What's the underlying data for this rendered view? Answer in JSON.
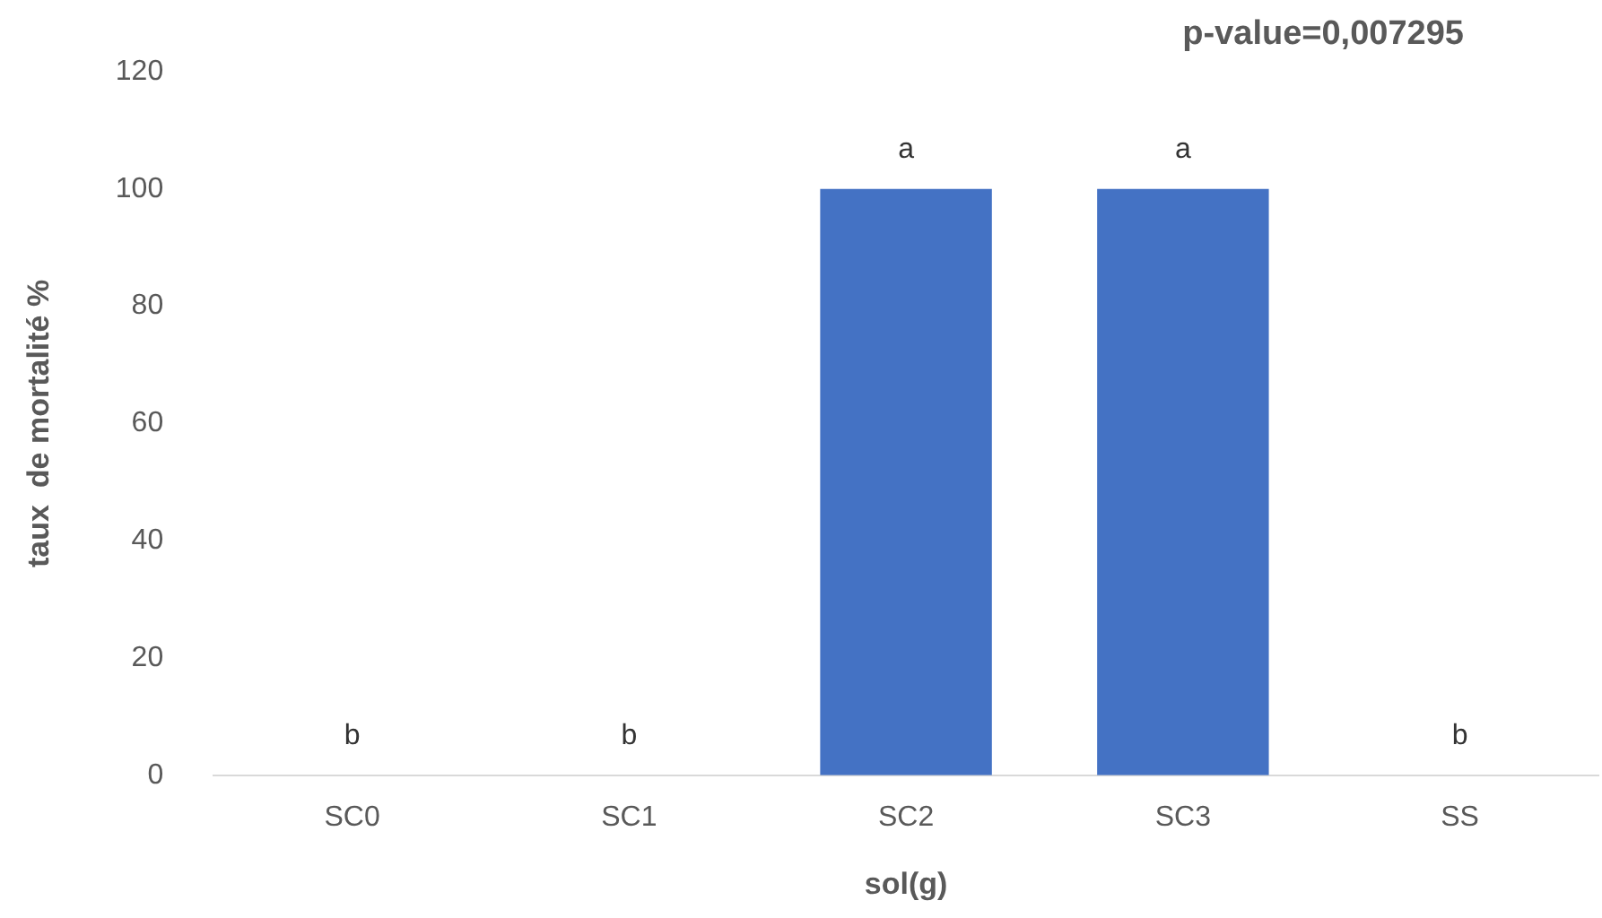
{
  "chart_data": {
    "type": "bar",
    "xlabel": "sol(g)",
    "ylabel": "taux  de mortalité %",
    "categories": [
      "SC0",
      "SC1",
      "SC2",
      "SC3",
      "SS"
    ],
    "values": [
      0,
      0,
      100,
      100,
      0
    ],
    "color": "#4472c4",
    "ylim": [
      0,
      120
    ],
    "yticks": [
      0,
      20,
      40,
      60,
      80,
      100,
      120
    ],
    "grid": false,
    "legend": false,
    "annotations": [
      "p-value=0,007295",
      {
        "text": "b",
        "x": "SC0",
        "y": 0
      },
      {
        "text": "b",
        "x": "SC1",
        "y": 0
      },
      {
        "text": "a",
        "x": "SC2",
        "y": 100
      },
      {
        "text": "a",
        "x": "SC3",
        "y": 100
      },
      {
        "text": "b",
        "x": "SS",
        "y": 0
      }
    ]
  }
}
